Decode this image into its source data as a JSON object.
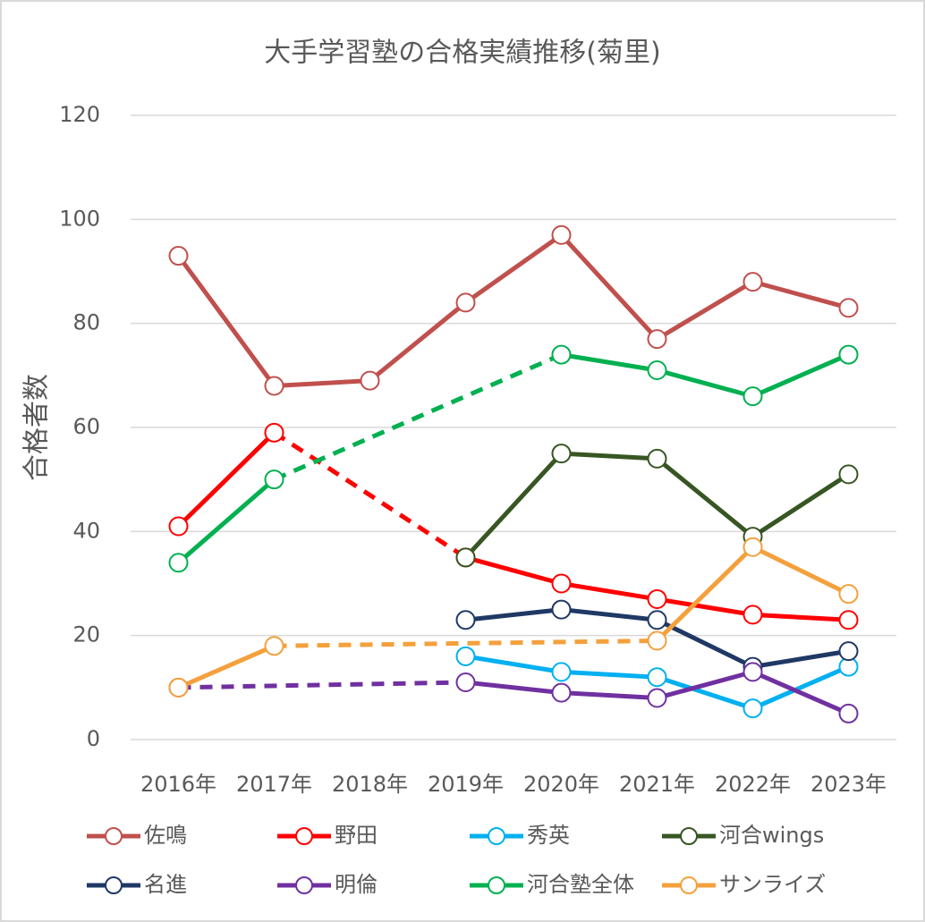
{
  "chart_data": {
    "type": "line",
    "title": "大手学習塾の合格実績推移(菊里)",
    "y_label": "合格者数",
    "categories": [
      "2016年",
      "2017年",
      "2018年",
      "2019年",
      "2020年",
      "2021年",
      "2022年",
      "2023年"
    ],
    "ylim": [
      0,
      120
    ],
    "yticks": [
      0,
      20,
      40,
      60,
      80,
      100,
      120
    ],
    "grid": true,
    "connect_gaps": "dashed",
    "legend": "bottom",
    "series": [
      {
        "name": "佐鳴",
        "color": "#c0504d",
        "values": [
          93,
          68,
          69,
          84,
          97,
          77,
          88,
          83
        ]
      },
      {
        "name": "野田",
        "color": "#ff0000",
        "values": [
          41,
          59,
          null,
          35,
          30,
          27,
          24,
          23
        ]
      },
      {
        "name": "秀英",
        "color": "#00b0f0",
        "values": [
          null,
          null,
          null,
          16,
          13,
          12,
          6,
          14
        ]
      },
      {
        "name": "河合wings",
        "color": "#375623",
        "values": [
          null,
          null,
          null,
          35,
          55,
          54,
          39,
          51
        ]
      },
      {
        "name": "名進",
        "color": "#1f3864",
        "values": [
          null,
          null,
          null,
          23,
          25,
          23,
          14,
          17
        ]
      },
      {
        "name": "明倫",
        "color": "#7030a0",
        "values": [
          10,
          null,
          null,
          11,
          9,
          8,
          13,
          5
        ]
      },
      {
        "name": "河合塾全体",
        "color": "#00b050",
        "values": [
          34,
          50,
          null,
          null,
          74,
          71,
          66,
          74
        ]
      },
      {
        "name": "サンライズ",
        "color": "#f4a03c",
        "values": [
          10,
          18,
          null,
          null,
          null,
          19,
          37,
          28
        ]
      }
    ]
  }
}
